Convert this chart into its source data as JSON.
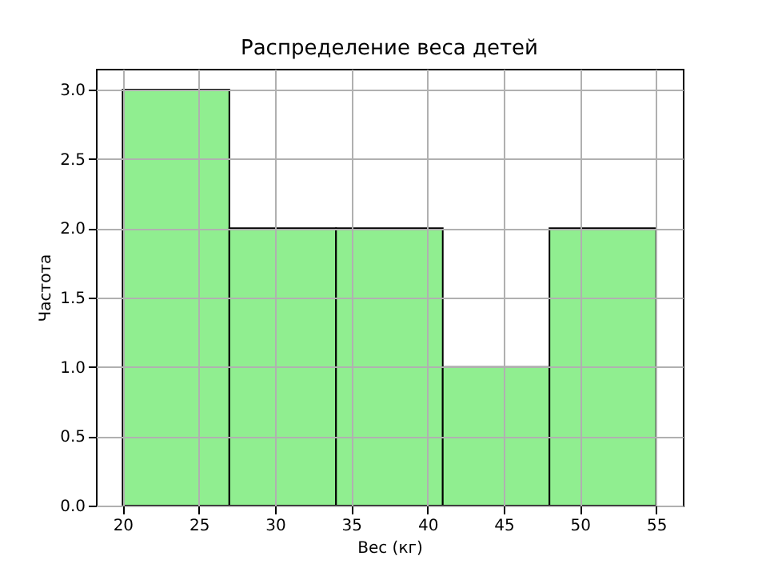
{
  "chart_data": {
    "type": "histogram",
    "title": "Распределение веса детей",
    "xlabel": "Вес (кг)",
    "ylabel": "Частота",
    "bins": [
      20,
      27,
      34,
      41,
      48,
      55
    ],
    "values": [
      3,
      2,
      2,
      1,
      2
    ],
    "color": "#90ee90",
    "xlim": [
      18.25,
      56.75
    ],
    "xticks": [
      20,
      25,
      30,
      35,
      40,
      45,
      50,
      55
    ],
    "ylim": [
      0,
      3.15
    ],
    "yticks": [
      {
        "value": 0,
        "label": "0.0"
      },
      {
        "value": 0.5,
        "label": "0.5"
      },
      {
        "value": 1,
        "label": "1.0"
      },
      {
        "value": 1.5,
        "label": "1.5"
      },
      {
        "value": 2,
        "label": "2.0"
      },
      {
        "value": 2.5,
        "label": "2.5"
      },
      {
        "value": 3,
        "label": "3.0"
      }
    ],
    "grid": true
  }
}
